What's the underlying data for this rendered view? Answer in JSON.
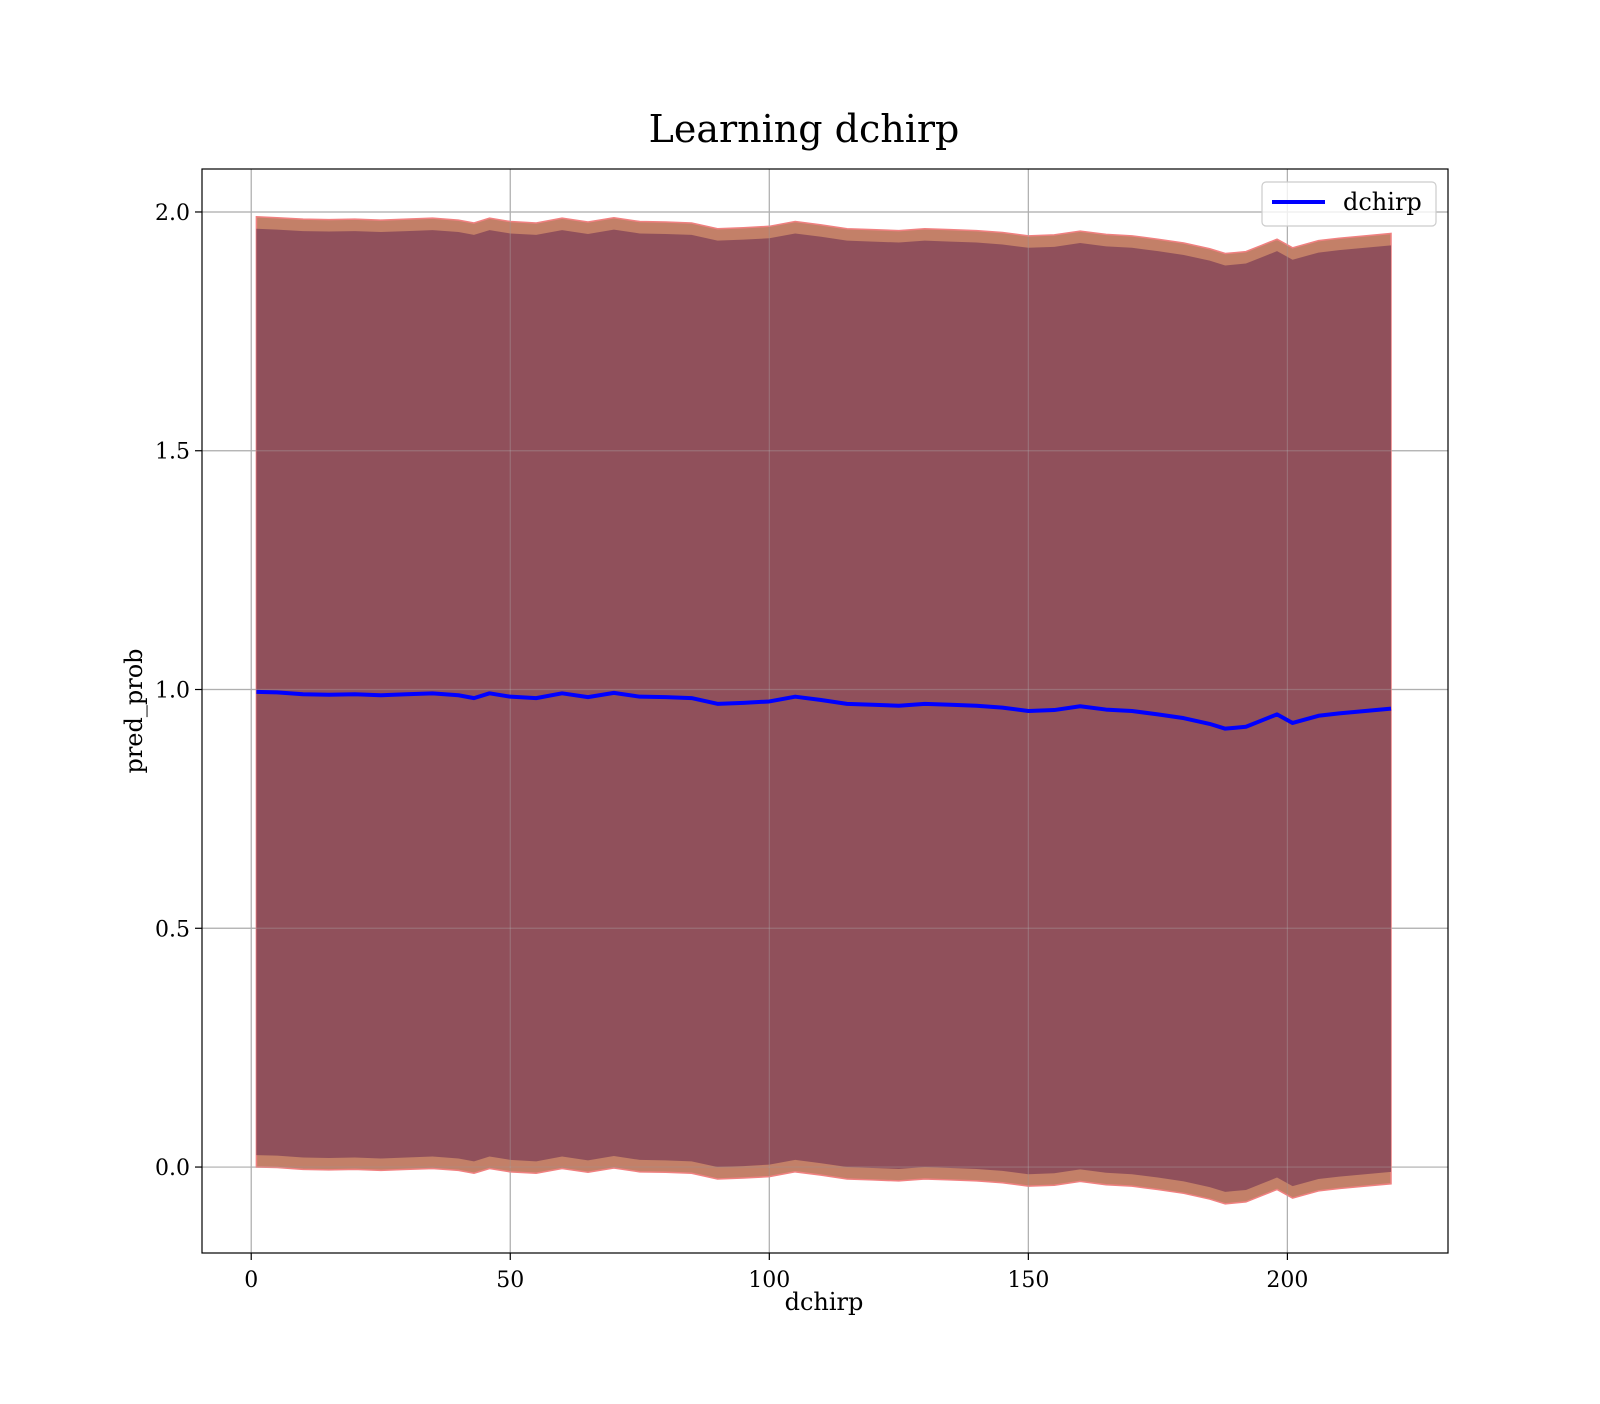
{
  "chart_data": {
    "type": "line",
    "title": "Learning dchirp",
    "xlabel": "dchirp",
    "ylabel": "pred_prob",
    "xlim": [
      -9.5,
      231.0
    ],
    "ylim": [
      -0.18,
      2.09
    ],
    "xticks": [
      0,
      50,
      100,
      150,
      200
    ],
    "xtick_labels": [
      "0",
      "50",
      "100",
      "150",
      "200"
    ],
    "yticks": [
      0.0,
      0.5,
      1.0,
      1.5,
      2.0
    ],
    "ytick_labels": [
      "0.0",
      "0.5",
      "1.0",
      "1.5",
      "2.0"
    ],
    "grid": true,
    "legend": {
      "placement": "top-right",
      "entries": [
        "dchirp"
      ]
    },
    "colors": {
      "line": "#0000ff",
      "inner_band": "#8b4a5a",
      "outer_band": "#b86a4e",
      "outer_band_edge": "#f08080",
      "grid": "#b0b0b0"
    },
    "series": [
      {
        "name": "dchirp",
        "x": [
          1,
          5,
          10,
          15,
          20,
          25,
          30,
          35,
          40,
          43,
          46,
          50,
          55,
          60,
          65,
          70,
          75,
          80,
          85,
          90,
          95,
          100,
          105,
          110,
          115,
          120,
          125,
          130,
          135,
          140,
          145,
          150,
          155,
          160,
          165,
          170,
          175,
          180,
          185,
          188,
          190,
          192,
          195,
          198,
          201,
          206,
          210,
          215,
          220
        ],
        "mean": [
          0.995,
          0.994,
          0.99,
          0.989,
          0.99,
          0.988,
          0.99,
          0.992,
          0.988,
          0.982,
          0.992,
          0.985,
          0.982,
          0.992,
          0.984,
          0.993,
          0.985,
          0.984,
          0.982,
          0.97,
          0.972,
          0.975,
          0.985,
          0.978,
          0.97,
          0.968,
          0.966,
          0.97,
          0.968,
          0.966,
          0.962,
          0.955,
          0.957,
          0.965,
          0.958,
          0.955,
          0.948,
          0.94,
          0.928,
          0.918,
          0.92,
          0.922,
          0.935,
          0.948,
          0.93,
          0.945,
          0.95,
          0.955,
          0.96
        ],
        "inner_upper": [
          1.965,
          1.963,
          1.96,
          1.959,
          1.96,
          1.958,
          1.96,
          1.962,
          1.958,
          1.952,
          1.962,
          1.955,
          1.952,
          1.962,
          1.954,
          1.963,
          1.955,
          1.954,
          1.952,
          1.94,
          1.942,
          1.945,
          1.955,
          1.948,
          1.94,
          1.938,
          1.936,
          1.94,
          1.938,
          1.936,
          1.932,
          1.925,
          1.927,
          1.935,
          1.928,
          1.925,
          1.918,
          1.91,
          1.898,
          1.888,
          1.89,
          1.892,
          1.905,
          1.918,
          1.9,
          1.915,
          1.92,
          1.925,
          1.93
        ],
        "inner_lower": [
          0.025,
          0.024,
          0.02,
          0.019,
          0.02,
          0.018,
          0.02,
          0.022,
          0.018,
          0.012,
          0.022,
          0.015,
          0.012,
          0.022,
          0.014,
          0.023,
          0.015,
          0.014,
          0.012,
          0.0,
          0.002,
          0.005,
          0.015,
          0.008,
          0.0,
          -0.002,
          -0.004,
          0.0,
          -0.002,
          -0.004,
          -0.008,
          -0.015,
          -0.013,
          -0.005,
          -0.012,
          -0.015,
          -0.022,
          -0.03,
          -0.042,
          -0.052,
          -0.05,
          -0.048,
          -0.035,
          -0.022,
          -0.04,
          -0.025,
          -0.02,
          -0.015,
          -0.01
        ],
        "outer_upper": [
          1.99,
          1.988,
          1.985,
          1.984,
          1.985,
          1.983,
          1.985,
          1.987,
          1.983,
          1.977,
          1.987,
          1.98,
          1.977,
          1.987,
          1.979,
          1.988,
          1.98,
          1.979,
          1.977,
          1.965,
          1.967,
          1.97,
          1.98,
          1.973,
          1.965,
          1.963,
          1.961,
          1.965,
          1.963,
          1.961,
          1.957,
          1.95,
          1.952,
          1.96,
          1.953,
          1.95,
          1.943,
          1.935,
          1.923,
          1.913,
          1.915,
          1.917,
          1.93,
          1.943,
          1.925,
          1.94,
          1.945,
          1.95,
          1.955
        ],
        "outer_lower": [
          0.0,
          -0.001,
          -0.005,
          -0.006,
          -0.005,
          -0.007,
          -0.005,
          -0.003,
          -0.007,
          -0.013,
          -0.003,
          -0.01,
          -0.013,
          -0.003,
          -0.011,
          -0.002,
          -0.01,
          -0.011,
          -0.013,
          -0.025,
          -0.023,
          -0.02,
          -0.01,
          -0.017,
          -0.025,
          -0.027,
          -0.029,
          -0.025,
          -0.027,
          -0.029,
          -0.033,
          -0.04,
          -0.038,
          -0.03,
          -0.037,
          -0.04,
          -0.047,
          -0.055,
          -0.067,
          -0.077,
          -0.075,
          -0.073,
          -0.06,
          -0.047,
          -0.065,
          -0.05,
          -0.045,
          -0.04,
          -0.035
        ]
      }
    ]
  }
}
